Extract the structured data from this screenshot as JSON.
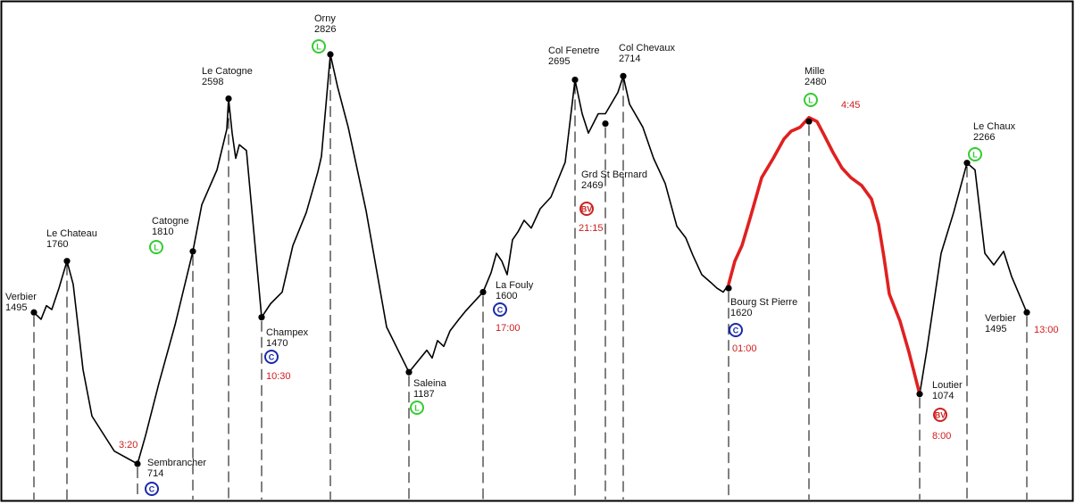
{
  "colors": {
    "profile": "#000000",
    "highlight": "#e02020",
    "time": "#d11b1b",
    "badge_L": "#33cc33",
    "badge_C": "#1a2aa8",
    "badge_BV": "#cc2222"
  },
  "chart_data": {
    "type": "line",
    "title": "",
    "xlabel": "",
    "ylabel": "",
    "ylim": [
      700,
      2830
    ],
    "grid": false,
    "waypoints": [
      {
        "name": "Verbier",
        "elevation": "1495",
        "badge": null,
        "time": null
      },
      {
        "name": "Le Chateau",
        "elevation": "1760",
        "badge": null,
        "time": null
      },
      {
        "name": "Sembrancher",
        "elevation": "714",
        "badge": "C",
        "time": "3:20"
      },
      {
        "name": "Catogne",
        "elevation": "1810",
        "badge": "L",
        "time": null
      },
      {
        "name": "Le Catogne",
        "elevation": "2598",
        "badge": null,
        "time": null
      },
      {
        "name": "Champex",
        "elevation": "1470",
        "badge": "C",
        "time": "10:30"
      },
      {
        "name": "Orny",
        "elevation": "2826",
        "badge": "L",
        "time": null
      },
      {
        "name": "Saleina",
        "elevation": "1187",
        "badge": "L",
        "time": null
      },
      {
        "name": "La Fouly",
        "elevation": "1600",
        "badge": "C",
        "time": "17:00"
      },
      {
        "name": "Col Fenetre",
        "elevation": "2695",
        "badge": null,
        "time": null
      },
      {
        "name": "Grd St Bernard",
        "elevation": "2469",
        "badge": "BV",
        "time": "21:15"
      },
      {
        "name": "Col Chevaux",
        "elevation": "2714",
        "badge": null,
        "time": null
      },
      {
        "name": "Bourg St Pierre",
        "elevation": "1620",
        "badge": "C",
        "time": "01:00"
      },
      {
        "name": "Mille",
        "elevation": "2480",
        "badge": "L",
        "time": "4:45"
      },
      {
        "name": "Loutier",
        "elevation": "1074",
        "badge": "BV",
        "time": "8:00"
      },
      {
        "name": "Le Chaux",
        "elevation": "2266",
        "badge": "L",
        "time": null
      },
      {
        "name": "Verbier",
        "elevation": "1495",
        "badge": null,
        "time": "13:00"
      }
    ],
    "series": [
      {
        "values": [
          [
            0,
            1495
          ],
          [
            8,
            1460
          ],
          [
            14,
            1530
          ],
          [
            20,
            1510
          ],
          [
            28,
            1620
          ],
          [
            37,
            1760
          ],
          [
            44,
            1640
          ],
          [
            55,
            1200
          ],
          [
            65,
            960
          ],
          [
            90,
            780
          ],
          [
            116,
            714
          ],
          [
            125,
            860
          ],
          [
            140,
            1130
          ],
          [
            158,
            1430
          ],
          [
            178,
            1810
          ],
          [
            188,
            2050
          ],
          [
            205,
            2230
          ],
          [
            216,
            2440
          ],
          [
            218,
            2598
          ],
          [
            222,
            2420
          ],
          [
            226,
            2290
          ],
          [
            230,
            2360
          ],
          [
            238,
            2330
          ],
          [
            255,
            1470
          ],
          [
            265,
            1540
          ],
          [
            278,
            1600
          ],
          [
            290,
            1840
          ],
          [
            305,
            2010
          ],
          [
            318,
            2220
          ],
          [
            322,
            2300
          ],
          [
            332,
            2826
          ],
          [
            340,
            2660
          ],
          [
            352,
            2450
          ],
          [
            372,
            2020
          ],
          [
            395,
            1420
          ],
          [
            420,
            1187
          ],
          [
            433,
            1260
          ],
          [
            440,
            1300
          ],
          [
            446,
            1260
          ],
          [
            452,
            1350
          ],
          [
            459,
            1320
          ],
          [
            466,
            1400
          ],
          [
            476,
            1460
          ],
          [
            483,
            1500
          ],
          [
            493,
            1550
          ],
          [
            503,
            1600
          ],
          [
            512,
            1700
          ],
          [
            518,
            1800
          ],
          [
            524,
            1760
          ],
          [
            530,
            1690
          ],
          [
            536,
            1870
          ],
          [
            542,
            1910
          ],
          [
            549,
            1970
          ],
          [
            557,
            1930
          ],
          [
            567,
            2030
          ],
          [
            579,
            2090
          ],
          [
            595,
            2270
          ],
          [
            606,
            2695
          ],
          [
            614,
            2520
          ],
          [
            621,
            2420
          ],
          [
            632,
            2520
          ],
          [
            640,
            2520
          ],
          [
            654,
            2630
          ],
          [
            660,
            2714
          ],
          [
            667,
            2570
          ],
          [
            682,
            2450
          ],
          [
            694,
            2290
          ],
          [
            707,
            2160
          ],
          [
            720,
            1940
          ],
          [
            730,
            1880
          ],
          [
            738,
            1790
          ],
          [
            748,
            1690
          ],
          [
            758,
            1650
          ],
          [
            765,
            1620
          ],
          [
            772,
            1600
          ],
          [
            778,
            1640
          ],
          [
            785,
            1760
          ],
          [
            793,
            1840
          ],
          [
            802,
            1980
          ],
          [
            815,
            2190
          ],
          [
            828,
            2290
          ],
          [
            840,
            2390
          ],
          [
            848,
            2430
          ],
          [
            858,
            2450
          ],
          [
            868,
            2500
          ],
          [
            877,
            2480
          ],
          [
            885,
            2410
          ],
          [
            895,
            2320
          ],
          [
            905,
            2240
          ],
          [
            915,
            2190
          ],
          [
            927,
            2150
          ],
          [
            938,
            2080
          ],
          [
            946,
            1950
          ],
          [
            952,
            1780
          ],
          [
            958,
            1590
          ],
          [
            970,
            1450
          ],
          [
            980,
            1290
          ],
          [
            992,
            1074
          ],
          [
            1000,
            1300
          ],
          [
            1016,
            1800
          ],
          [
            1030,
            2010
          ],
          [
            1045,
            2266
          ],
          [
            1054,
            2230
          ],
          [
            1065,
            1800
          ],
          [
            1075,
            1740
          ],
          [
            1086,
            1810
          ],
          [
            1095,
            1680
          ],
          [
            1112,
            1495
          ]
        ]
      }
    ],
    "highlight_range": [
      778,
      992
    ]
  }
}
